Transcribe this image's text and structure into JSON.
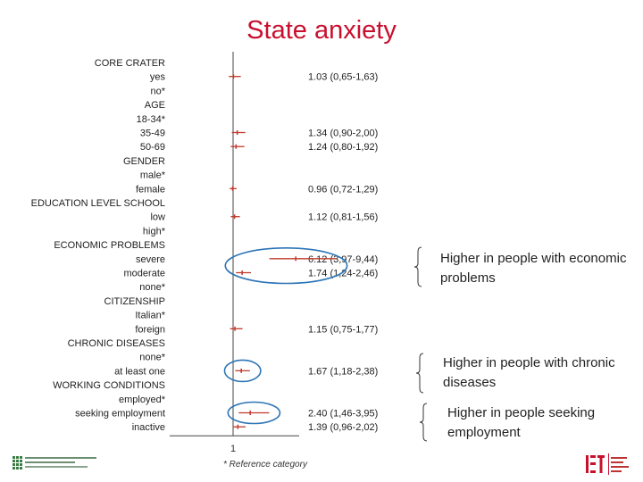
{
  "chart_data": {
    "type": "forest",
    "title": "State anxiety",
    "reference_value": 1,
    "x_tick_label": "1",
    "rows": [
      {
        "label": "CORE CRATER",
        "header": true
      },
      {
        "label": "yes",
        "or": 1.03,
        "lo": 0.65,
        "hi": 1.63,
        "text": "1.03 (0,65-1,63)"
      },
      {
        "label": "no*"
      },
      {
        "label": "AGE",
        "header": true
      },
      {
        "label": "18-34*"
      },
      {
        "label": "35-49",
        "or": 1.34,
        "lo": 0.9,
        "hi": 2.0,
        "text": "1.34 (0,90-2,00)"
      },
      {
        "label": "50-69",
        "or": 1.24,
        "lo": 0.8,
        "hi": 1.92,
        "text": "1.24 (0,80-1,92)"
      },
      {
        "label": "GENDER",
        "header": true
      },
      {
        "label": "male*"
      },
      {
        "label": "female",
        "or": 0.96,
        "lo": 0.72,
        "hi": 1.29,
        "text": "0.96 (0,72-1,29)"
      },
      {
        "label": "EDUCATION LEVEL SCHOOL",
        "header": true
      },
      {
        "label": "low",
        "or": 1.12,
        "lo": 0.81,
        "hi": 1.56,
        "text": "1.12 (0,81-1,56)"
      },
      {
        "label": "high*"
      },
      {
        "label": "ECONOMIC PROBLEMS",
        "header": true
      },
      {
        "label": "severe",
        "or": 6.12,
        "lo": 3.97,
        "hi": 9.44,
        "text": "6.12 (3,97-9,44)"
      },
      {
        "label": "moderate",
        "or": 1.74,
        "lo": 1.24,
        "hi": 2.46,
        "text": "1.74 (1,24-2,46)"
      },
      {
        "label": "none*"
      },
      {
        "label": "CITIZENSHIP",
        "header": true
      },
      {
        "label": "Italian*"
      },
      {
        "label": "foreign",
        "or": 1.15,
        "lo": 0.75,
        "hi": 1.77,
        "text": "1.15 (0,75-1,77)"
      },
      {
        "label": "CHRONIC DISEASES",
        "header": true
      },
      {
        "label": "none*"
      },
      {
        "label": "at least one",
        "or": 1.67,
        "lo": 1.18,
        "hi": 2.38,
        "text": "1.67 (1,18-2,38)"
      },
      {
        "label": "WORKING CONDITIONS",
        "header": true
      },
      {
        "label": "employed*"
      },
      {
        "label": "seeking employment",
        "or": 2.4,
        "lo": 1.46,
        "hi": 3.95,
        "text": "2.40 (1,46-3,95)"
      },
      {
        "label": "inactive",
        "or": 1.39,
        "lo": 0.96,
        "hi": 2.02,
        "text": "1.39 (0,96-2,02)"
      }
    ],
    "highlights": [
      {
        "rows": [
          "severe",
          "moderate"
        ]
      },
      {
        "rows": [
          "at least one"
        ]
      },
      {
        "rows": [
          "seeking employment"
        ]
      }
    ],
    "colors": {
      "title": "#c8102e",
      "ci": "#c0392b",
      "circle": "#2e75b6",
      "axis": "#444444"
    }
  },
  "annotations": [
    {
      "text": "Higher in people with economic problems"
    },
    {
      "text": "Higher in people with chronic diseases"
    },
    {
      "text": "Higher in people seeking employment"
    }
  ],
  "footnote": "* Reference category"
}
